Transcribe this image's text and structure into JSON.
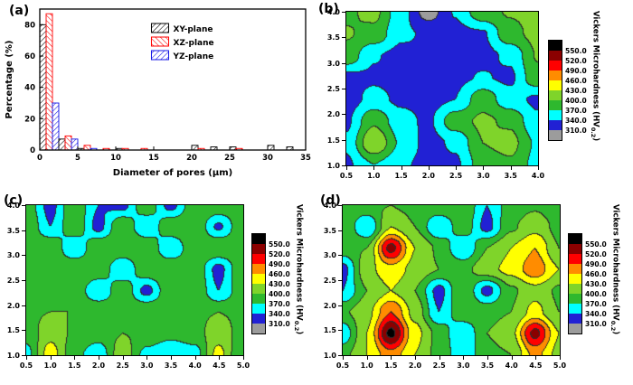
{
  "figure": {
    "panels": {
      "a": {
        "label": "(a)"
      },
      "b": {
        "label": "(b)"
      },
      "c": {
        "label": "(c)"
      },
      "d": {
        "label": "(d)"
      }
    }
  },
  "colorbar": {
    "title_prefix": "Vickers Microhardness (HV",
    "title_sub": "0.2",
    "title_suffix": ")",
    "labels_top_to_bottom": [
      "550.0",
      "520.0",
      "490.0",
      "460.0",
      "430.0",
      "400.0",
      "370.0",
      "340.0",
      "310.0"
    ],
    "colors_top_to_bottom": [
      "#000000",
      "#8B0000",
      "#FF0000",
      "#FF8C00",
      "#FFFF00",
      "#7FD42A",
      "#2EB82E",
      "#00FFFF",
      "#2121D4",
      "#9C9C9C"
    ],
    "levels_ascending": [
      310,
      340,
      370,
      400,
      430,
      460,
      490,
      520,
      550
    ]
  },
  "chart_data": [
    {
      "id": "a",
      "type": "bar",
      "title": "",
      "xlabel": "Diameter of pores (μm)",
      "ylabel": "Percentage (%)",
      "xlim": [
        0,
        35
      ],
      "ylim": [
        0,
        90
      ],
      "xticks": [
        0,
        5,
        10,
        15,
        20,
        25,
        30,
        35
      ],
      "yticks": [
        0,
        20,
        40,
        60,
        80
      ],
      "bin_width": 2.5,
      "bin_starts": [
        0,
        2.5,
        5,
        7.5,
        10,
        12.5,
        15,
        17.5,
        20,
        22.5,
        25,
        27.5,
        30,
        32.5
      ],
      "series": [
        {
          "name": "XY-plane",
          "color": "#000000",
          "hatch_angle": 45,
          "values": [
            80,
            7,
            1,
            0,
            1,
            0,
            0,
            0,
            3,
            2,
            2,
            0,
            3,
            2
          ]
        },
        {
          "name": "XZ-plane",
          "color": "#FF0000",
          "hatch_angle": -45,
          "values": [
            87,
            9,
            3,
            1,
            1,
            1,
            0,
            0,
            1,
            0,
            1,
            0,
            0,
            0
          ]
        },
        {
          "name": "YZ-plane",
          "color": "#1414E6",
          "hatch_angle": 45,
          "values": [
            30,
            7,
            1,
            0,
            0,
            0,
            0,
            0,
            0,
            0,
            0,
            0,
            0,
            0
          ]
        }
      ],
      "legend_position": "upper right"
    },
    {
      "id": "b",
      "type": "heatmap",
      "x_range": [
        0.5,
        4.0
      ],
      "y_range": [
        1.0,
        4.0
      ],
      "xticks": [
        "0.5",
        "1.0",
        "1.5",
        "2.0",
        "2.5",
        "3.0",
        "3.5",
        "4.0"
      ],
      "yticks": [
        "1.0",
        "1.5",
        "2.0",
        "2.5",
        "3.0",
        "3.5",
        "4.0"
      ],
      "zlabel": "Vickers Microhardness (HV0.2)",
      "grid": [
        [
          335,
          370,
          345,
          330,
          335,
          385,
          395,
          360
        ],
        [
          345,
          430,
          365,
          330,
          345,
          400,
          410,
          365
        ],
        [
          335,
          395,
          350,
          335,
          390,
          405,
          395,
          345
        ],
        [
          328,
          348,
          335,
          330,
          340,
          390,
          350,
          335
        ],
        [
          332,
          336,
          330,
          338,
          334,
          342,
          335,
          392
        ],
        [
          392,
          342,
          332,
          336,
          330,
          332,
          345,
          402
        ],
        [
          402,
          392,
          345,
          336,
          332,
          336,
          392,
          408
        ],
        [
          395,
          408,
          352,
          296,
          342,
          392,
          402,
          408
        ]
      ]
    },
    {
      "id": "c",
      "type": "heatmap",
      "x_range": [
        0.5,
        5.0
      ],
      "y_range": [
        1.0,
        4.0
      ],
      "xticks": [
        "0.5",
        "1.0",
        "1.5",
        "2.0",
        "2.5",
        "3.0",
        "3.5",
        "4.0",
        "4.5",
        "5.0"
      ],
      "yticks": [
        "1.0",
        "1.5",
        "2.0",
        "2.5",
        "3.0",
        "3.5",
        "4.0"
      ],
      "zlabel": "Vickers Microhardness (HV0.2)",
      "grid": [
        [
          360,
          445,
          380,
          350,
          420,
          360,
          340,
          355,
          440,
          370
        ],
        [
          380,
          420,
          395,
          385,
          400,
          395,
          380,
          390,
          415,
          390
        ],
        [
          395,
          400,
          400,
          400,
          395,
          400,
          400,
          395,
          400,
          395
        ],
        [
          390,
          400,
          395,
          340,
          395,
          330,
          395,
          400,
          340,
          390
        ],
        [
          400,
          395,
          400,
          395,
          340,
          395,
          400,
          395,
          330,
          395
        ],
        [
          395,
          400,
          340,
          400,
          395,
          400,
          340,
          395,
          400,
          390
        ],
        [
          400,
          340,
          395,
          330,
          400,
          340,
          395,
          400,
          335,
          395
        ],
        [
          390,
          330,
          395,
          340,
          330,
          395,
          330,
          390,
          395,
          385
        ]
      ]
    },
    {
      "id": "d",
      "type": "heatmap",
      "x_range": [
        0.5,
        5.0
      ],
      "y_range": [
        1.0,
        4.0
      ],
      "xticks": [
        "0.5",
        "1.0",
        "1.5",
        "2.0",
        "2.5",
        "3.0",
        "3.5",
        "4.0",
        "4.5",
        "5.0"
      ],
      "yticks": [
        "1.0",
        "1.5",
        "2.0",
        "2.5",
        "3.0",
        "3.5",
        "4.0"
      ],
      "zlabel": "Vickers Microhardness (HV0.2)",
      "grid": [
        [
          390,
          430,
          480,
          430,
          390,
          350,
          390,
          400,
          470,
          420
        ],
        [
          350,
          430,
          560,
          440,
          390,
          340,
          400,
          420,
          530,
          430
        ],
        [
          395,
          420,
          490,
          420,
          340,
          395,
          390,
          400,
          440,
          400
        ],
        [
          340,
          400,
          430,
          400,
          330,
          400,
          330,
          395,
          420,
          395
        ],
        [
          330,
          420,
          450,
          420,
          400,
          390,
          420,
          440,
          480,
          430
        ],
        [
          390,
          400,
          530,
          430,
          395,
          340,
          400,
          430,
          460,
          400
        ],
        [
          400,
          340,
          430,
          400,
          340,
          390,
          330,
          395,
          420,
          390
        ],
        [
          385,
          395,
          400,
          390,
          395,
          400,
          340,
          385,
          395,
          380
        ]
      ]
    }
  ]
}
